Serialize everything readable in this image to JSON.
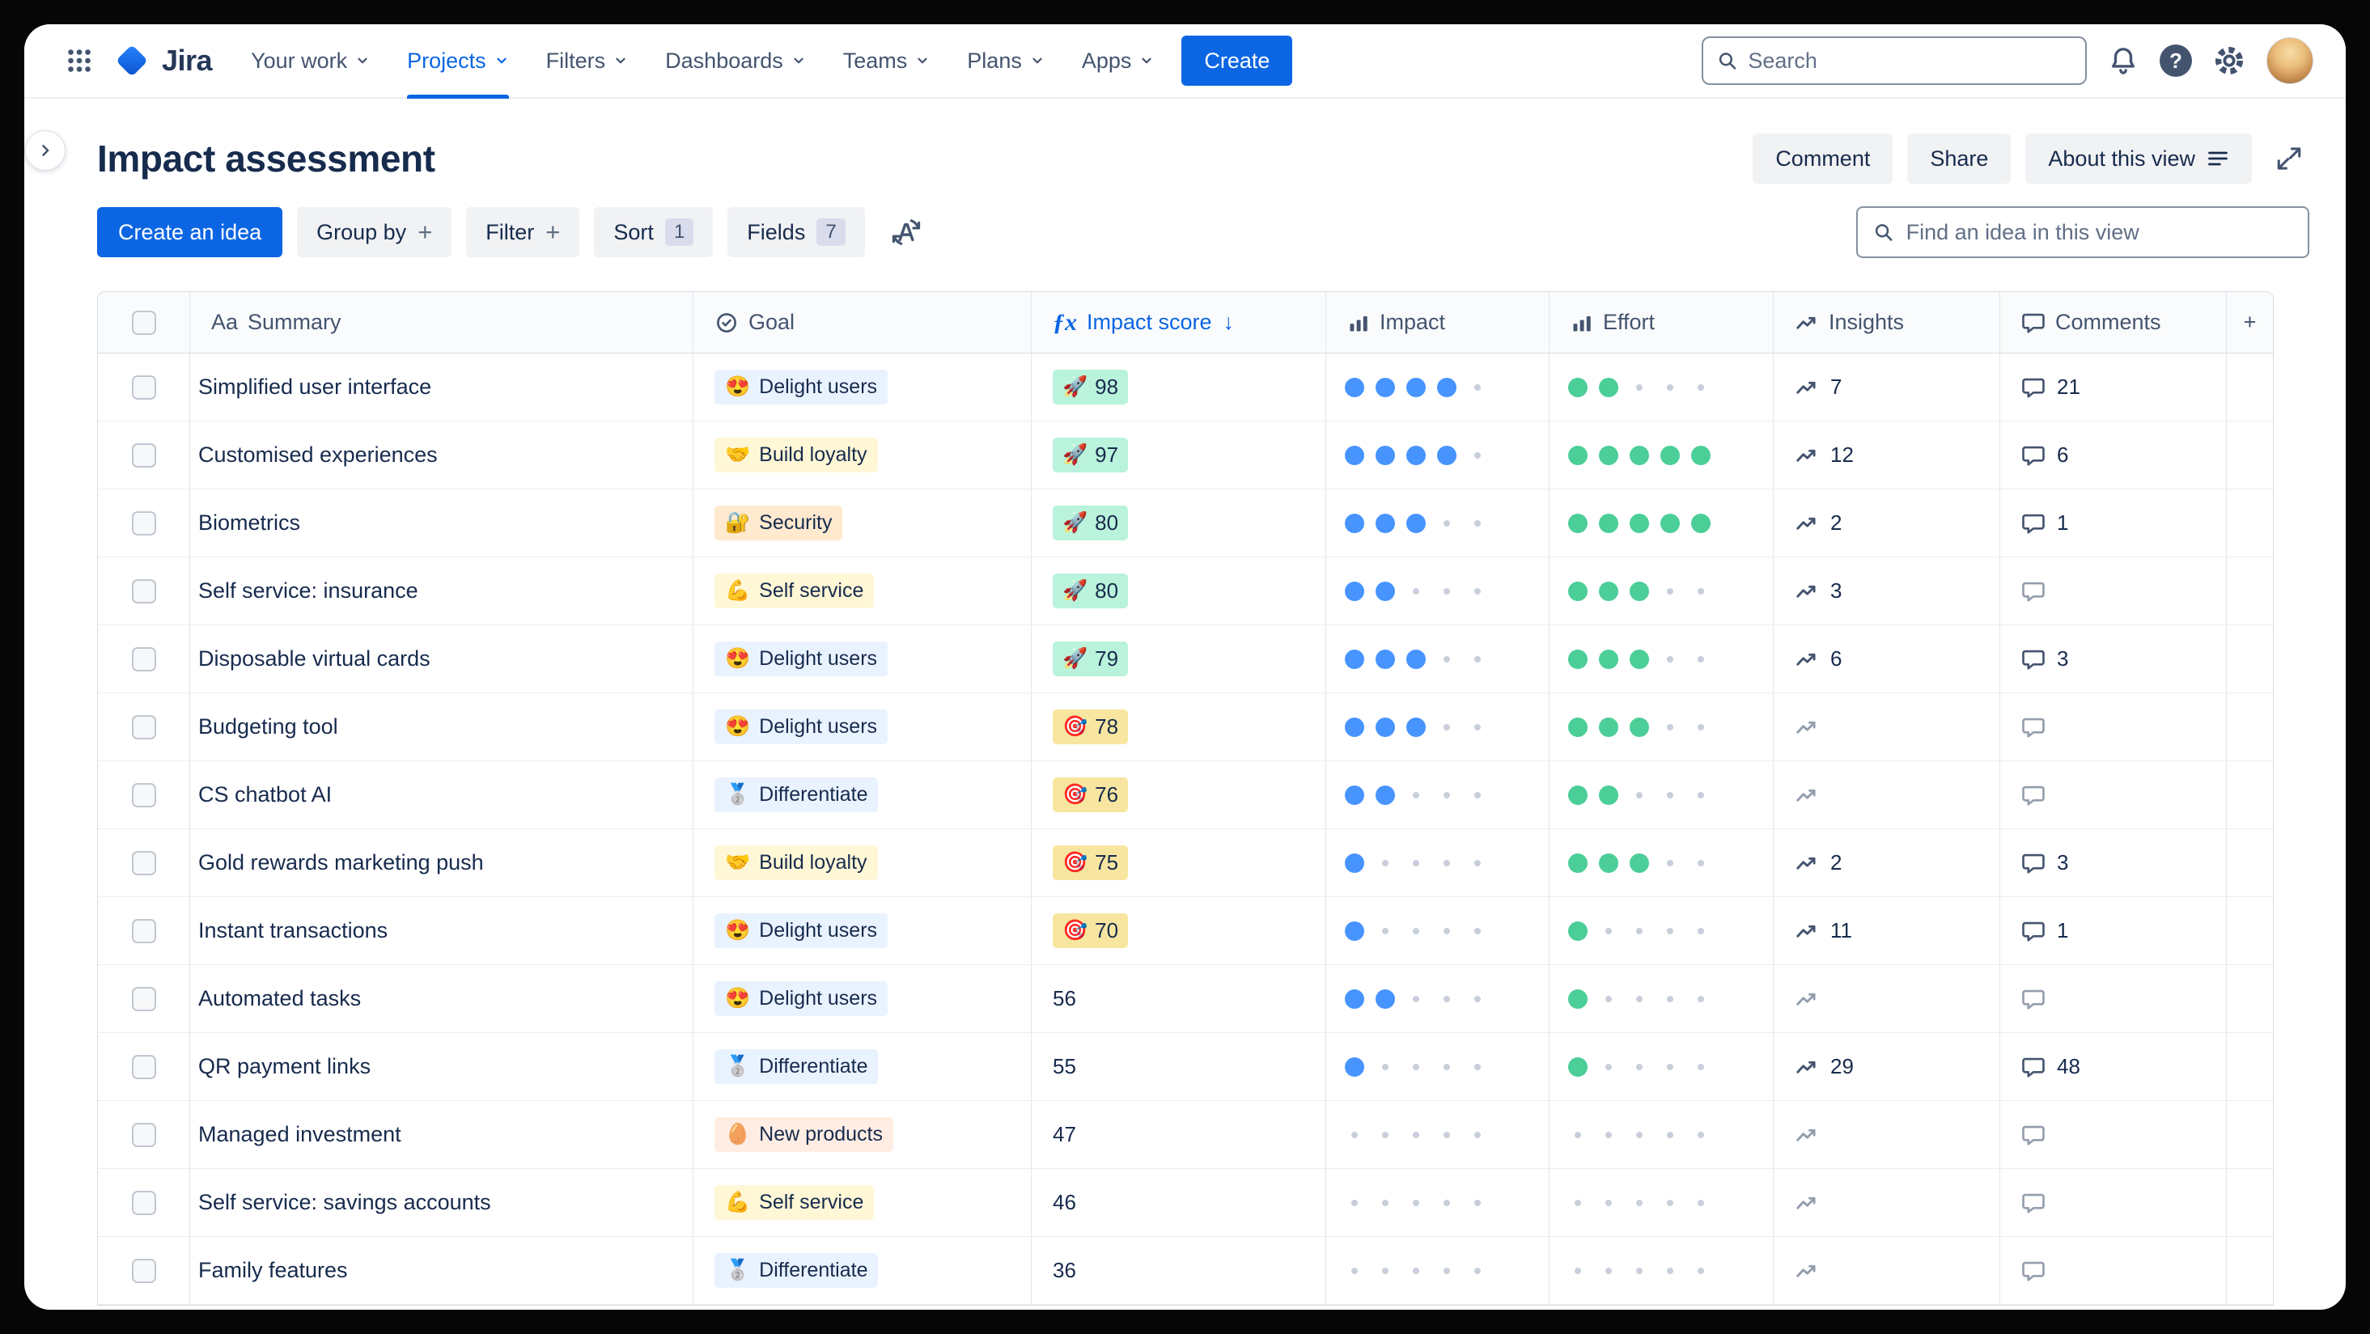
{
  "nav": {
    "logo": "Jira",
    "items": [
      {
        "label": "Your work"
      },
      {
        "label": "Projects"
      },
      {
        "label": "Filters"
      },
      {
        "label": "Dashboards"
      },
      {
        "label": "Teams"
      },
      {
        "label": "Plans"
      },
      {
        "label": "Apps"
      }
    ],
    "create_label": "Create",
    "search_placeholder": "Search",
    "help_glyph": "?"
  },
  "header": {
    "title": "Impact assessment",
    "actions": {
      "comment": "Comment",
      "share": "Share",
      "about": "About this view"
    }
  },
  "toolbar": {
    "create_idea": "Create an idea",
    "group_by": "Group by",
    "filter": "Filter",
    "sort": "Sort",
    "sort_count": "1",
    "fields": "Fields",
    "fields_count": "7",
    "plus_glyph": "+",
    "find_placeholder": "Find an idea in this view"
  },
  "table": {
    "headers": {
      "summary": "Summary",
      "goal": "Goal",
      "impact_score": "Impact score",
      "impact": "Impact",
      "effort": "Effort",
      "insights": "Insights",
      "comments": "Comments"
    },
    "glyphs": {
      "summary": "Aa",
      "fx": "ƒx",
      "sort_arrow": "↓",
      "add_column": "+"
    },
    "rows": [
      {
        "summary": "Simplified user interface",
        "goal": "Delight users",
        "goal_emoji": "😍",
        "goal_color": "blue",
        "score": "98",
        "score_emoji": "🚀",
        "score_color": "green",
        "impact": 4,
        "effort": 2,
        "insights": "7",
        "comments": "21"
      },
      {
        "summary": "Customised experiences",
        "goal": "Build loyalty",
        "goal_emoji": "🤝",
        "goal_color": "yellow",
        "score": "97",
        "score_emoji": "🚀",
        "score_color": "green",
        "impact": 4,
        "effort": 5,
        "insights": "12",
        "comments": "6"
      },
      {
        "summary": "Biometrics",
        "goal": "Security",
        "goal_emoji": "🔐",
        "goal_color": "orange",
        "score": "80",
        "score_emoji": "🚀",
        "score_color": "green",
        "impact": 3,
        "effort": 5,
        "insights": "2",
        "comments": "1"
      },
      {
        "summary": "Self service: insurance",
        "goal": "Self service",
        "goal_emoji": "💪",
        "goal_color": "yellow",
        "score": "80",
        "score_emoji": "🚀",
        "score_color": "green",
        "impact": 2,
        "effort": 3,
        "insights": "3",
        "comments": ""
      },
      {
        "summary": "Disposable virtual cards",
        "goal": "Delight users",
        "goal_emoji": "😍",
        "goal_color": "blue",
        "score": "79",
        "score_emoji": "🚀",
        "score_color": "green",
        "impact": 3,
        "effort": 3,
        "insights": "6",
        "comments": "3"
      },
      {
        "summary": "Budgeting tool",
        "goal": "Delight users",
        "goal_emoji": "😍",
        "goal_color": "blue",
        "score": "78",
        "score_emoji": "🎯",
        "score_color": "yellow",
        "impact": 3,
        "effort": 3,
        "insights": "",
        "comments": ""
      },
      {
        "summary": "CS chatbot AI",
        "goal": "Differentiate",
        "goal_emoji": "🥈",
        "goal_color": "blue",
        "score": "76",
        "score_emoji": "🎯",
        "score_color": "yellow",
        "impact": 2,
        "effort": 2,
        "insights": "",
        "comments": ""
      },
      {
        "summary": "Gold rewards marketing push",
        "goal": "Build loyalty",
        "goal_emoji": "🤝",
        "goal_color": "yellow",
        "score": "75",
        "score_emoji": "🎯",
        "score_color": "yellow",
        "impact": 1,
        "effort": 3,
        "insights": "2",
        "comments": "3"
      },
      {
        "summary": "Instant transactions",
        "goal": "Delight users",
        "goal_emoji": "😍",
        "goal_color": "blue",
        "score": "70",
        "score_emoji": "🎯",
        "score_color": "yellow",
        "impact": 1,
        "effort": 1,
        "insights": "11",
        "comments": "1"
      },
      {
        "summary": "Automated tasks",
        "goal": "Delight users",
        "goal_emoji": "😍",
        "goal_color": "blue",
        "score": "56",
        "score_emoji": "",
        "score_color": "none",
        "impact": 2,
        "effort": 1,
        "insights": "",
        "comments": ""
      },
      {
        "summary": "QR payment links",
        "goal": "Differentiate",
        "goal_emoji": "🥈",
        "goal_color": "blue",
        "score": "55",
        "score_emoji": "",
        "score_color": "none",
        "impact": 1,
        "effort": 1,
        "insights": "29",
        "comments": "48"
      },
      {
        "summary": "Managed investment",
        "goal": "New products",
        "goal_emoji": "🥚",
        "goal_color": "peach",
        "score": "47",
        "score_emoji": "",
        "score_color": "none",
        "impact": 0,
        "effort": 0,
        "insights": "",
        "comments": ""
      },
      {
        "summary": "Self service: savings accounts",
        "goal": "Self service",
        "goal_emoji": "💪",
        "goal_color": "yellow",
        "score": "46",
        "score_emoji": "",
        "score_color": "none",
        "impact": 0,
        "effort": 0,
        "insights": "",
        "comments": ""
      },
      {
        "summary": "Family features",
        "goal": "Differentiate",
        "goal_emoji": "🥈",
        "goal_color": "blue",
        "score": "36",
        "score_emoji": "",
        "score_color": "none",
        "impact": 0,
        "effort": 0,
        "insights": "",
        "comments": ""
      }
    ]
  },
  "colors": {
    "accent_blue": "#0C66E4",
    "impact_dot": "#4794FF",
    "effort_dot": "#4BCE97",
    "score_green_bg": "#BAF3DB",
    "score_yellow_bg": "#F8E6A0"
  }
}
